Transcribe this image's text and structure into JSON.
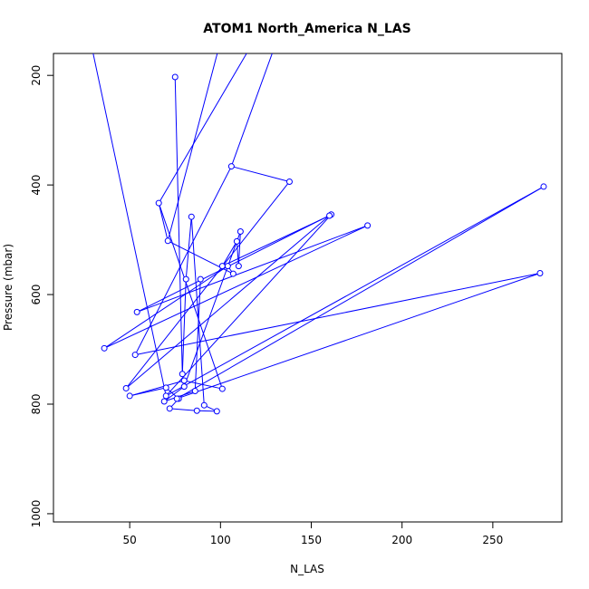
{
  "chart_data": {
    "type": "line",
    "title": "ATOM1 North_America N_LAS",
    "xlabel": "N_LAS",
    "ylabel": "Pressure (mbar)",
    "xlim": [
      8,
      288
    ],
    "ylim": [
      1015,
      160
    ],
    "y_reversed": true,
    "grid": false,
    "legend": "none",
    "line_color": "#0000ff",
    "x_ticks": [
      50,
      100,
      150,
      200,
      250
    ],
    "y_ticks": [
      200,
      400,
      600,
      800,
      1000
    ],
    "series": [
      {
        "x": [
          75,
          79,
          81,
          84,
          91,
          98,
          87,
          72,
          77,
          70,
          50,
          80,
          101,
          66,
          71,
          107,
          104,
          36,
          181,
          54,
          161,
          70,
          278,
          76,
          276,
          53,
          106,
          138,
          48,
          160,
          101,
          109,
          110,
          111,
          80,
          69,
          86,
          89
        ],
        "y": [
          203,
          745,
          572,
          458,
          802,
          813,
          812,
          808,
          790,
          770,
          785,
          757,
          772,
          433,
          502,
          562,
          548,
          698,
          474,
          632,
          454,
          785,
          403,
          790,
          561,
          710,
          366,
          394,
          771,
          456,
          548,
          503,
          548,
          485,
          768,
          795,
          776,
          572
        ],
        "extensions": [
          {
            "from": [
              70,
              785
            ],
            "to": [
              26,
              100
            ]
          },
          {
            "from": [
              66,
              433
            ],
            "to": [
              125,
              100
            ]
          },
          {
            "from": [
              71,
              502
            ],
            "to": [
              103,
              100
            ]
          },
          {
            "from": [
              106,
              366
            ],
            "to": [
              135,
              100
            ]
          }
        ]
      }
    ]
  }
}
